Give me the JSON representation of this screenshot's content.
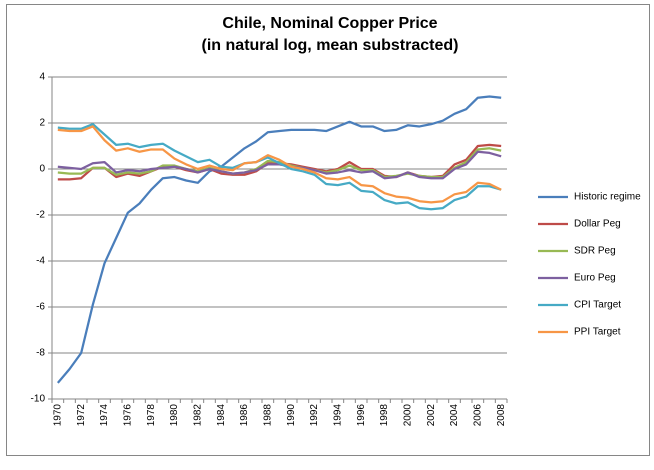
{
  "chart_data": {
    "type": "line",
    "title": "Chile, Nominal Copper Price",
    "subtitle": "(in natural log, mean substracted)",
    "categories": [
      "1970",
      null,
      "1972",
      null,
      "1974",
      null,
      "1976",
      null,
      "1978",
      null,
      "1980",
      null,
      "1982",
      null,
      "1984",
      null,
      "1986",
      null,
      "1988",
      null,
      "1990",
      null,
      "1992",
      null,
      "1994",
      null,
      "1996",
      null,
      "1998",
      null,
      "2000",
      null,
      "2002",
      null,
      "2004",
      null,
      "2006",
      null,
      "2008"
    ],
    "ylim": [
      -10,
      4
    ],
    "yticks": [
      -10,
      -8,
      -6,
      -4,
      -2,
      0,
      2,
      4
    ],
    "grid": true,
    "legend": "right",
    "series": [
      {
        "name": "Historic regime",
        "color": "#4a7ebb",
        "values": [
          -9.3,
          -8.7,
          -8.0,
          -5.9,
          -4.1,
          -3.0,
          -1.9,
          -1.5,
          -0.9,
          -0.4,
          -0.35,
          -0.5,
          -0.6,
          -0.1,
          0.1,
          0.5,
          0.9,
          1.2,
          1.6,
          1.65,
          1.7,
          1.7,
          1.7,
          1.65,
          1.85,
          2.05,
          1.85,
          1.85,
          1.65,
          1.7,
          1.9,
          1.85,
          1.95,
          2.1,
          2.4,
          2.6,
          3.1,
          3.15,
          3.1
        ]
      },
      {
        "name": "Dollar Peg",
        "color": "#be4b48",
        "values": [
          -0.45,
          -0.45,
          -0.4,
          0.05,
          0.05,
          -0.35,
          -0.2,
          -0.3,
          -0.1,
          0.1,
          0.1,
          -0.05,
          -0.15,
          0.0,
          -0.2,
          -0.25,
          -0.25,
          -0.1,
          0.25,
          0.25,
          0.2,
          0.1,
          0.0,
          -0.1,
          0.0,
          0.3,
          0.0,
          0.0,
          -0.3,
          -0.35,
          -0.15,
          -0.3,
          -0.35,
          -0.3,
          0.2,
          0.4,
          1.0,
          1.05,
          1.0
        ]
      },
      {
        "name": "SDR Peg",
        "color": "#98b954",
        "values": [
          -0.15,
          -0.2,
          -0.2,
          0.05,
          0.05,
          -0.25,
          -0.15,
          -0.2,
          -0.1,
          0.15,
          0.15,
          0.0,
          -0.1,
          0.05,
          -0.1,
          -0.2,
          -0.15,
          0.0,
          0.35,
          0.3,
          0.15,
          0.05,
          -0.05,
          -0.15,
          -0.05,
          0.15,
          -0.05,
          -0.05,
          -0.35,
          -0.3,
          -0.2,
          -0.3,
          -0.35,
          -0.35,
          0.05,
          0.3,
          0.85,
          0.9,
          0.8
        ]
      },
      {
        "name": "Euro Peg",
        "color": "#7d60a0",
        "values": [
          0.1,
          0.05,
          0.0,
          0.25,
          0.3,
          -0.15,
          -0.05,
          -0.1,
          0.0,
          0.05,
          0.1,
          0.0,
          -0.15,
          0.0,
          -0.1,
          -0.2,
          -0.15,
          -0.05,
          0.2,
          0.2,
          0.1,
          0.05,
          -0.05,
          -0.2,
          -0.15,
          -0.05,
          -0.15,
          -0.1,
          -0.4,
          -0.35,
          -0.15,
          -0.35,
          -0.4,
          -0.4,
          0.0,
          0.2,
          0.75,
          0.7,
          0.55
        ]
      },
      {
        "name": "CPI Target",
        "color": "#46aac5",
        "values": [
          1.8,
          1.75,
          1.75,
          1.95,
          1.5,
          1.05,
          1.1,
          0.95,
          1.05,
          1.1,
          0.8,
          0.55,
          0.3,
          0.4,
          0.1,
          0.05,
          0.25,
          0.3,
          0.5,
          0.25,
          0.0,
          -0.1,
          -0.25,
          -0.65,
          -0.7,
          -0.6,
          -0.95,
          -1.0,
          -1.35,
          -1.5,
          -1.45,
          -1.7,
          -1.75,
          -1.7,
          -1.35,
          -1.2,
          -0.75,
          -0.75,
          -0.9
        ]
      },
      {
        "name": "PPI Target",
        "color": "#f79646",
        "values": [
          1.7,
          1.65,
          1.65,
          1.85,
          1.25,
          0.8,
          0.9,
          0.75,
          0.85,
          0.85,
          0.45,
          0.2,
          0.0,
          0.15,
          0.0,
          -0.05,
          0.25,
          0.3,
          0.6,
          0.4,
          0.1,
          0.0,
          -0.15,
          -0.4,
          -0.45,
          -0.35,
          -0.7,
          -0.75,
          -1.05,
          -1.2,
          -1.25,
          -1.4,
          -1.45,
          -1.4,
          -1.1,
          -1.0,
          -0.6,
          -0.65,
          -0.9
        ]
      }
    ]
  }
}
